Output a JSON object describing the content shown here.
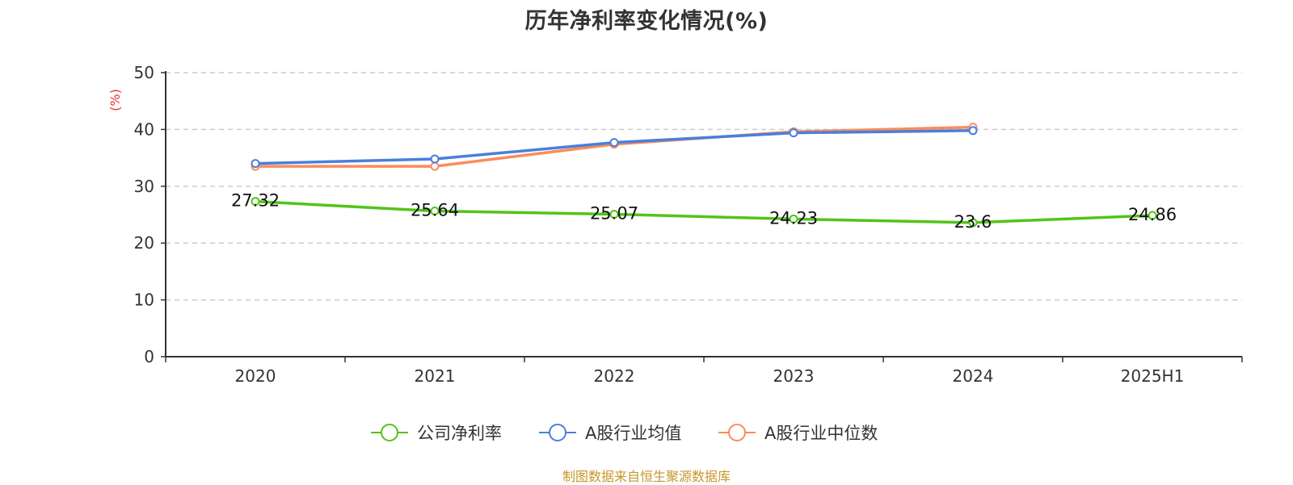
{
  "chart_data": {
    "type": "line",
    "title": "历年净利率变化情况(%)",
    "ylabel": "(%)",
    "xlabel": "",
    "categories": [
      "2020",
      "2021",
      "2022",
      "2023",
      "2024",
      "2025H1"
    ],
    "ylim": [
      0,
      50
    ],
    "yticks": [
      0,
      10,
      20,
      30,
      40,
      50
    ],
    "grid": true,
    "legend_position": "bottom",
    "series": [
      {
        "name": "公司净利率",
        "color": "#52c41a",
        "values": [
          27.32,
          25.64,
          25.07,
          24.23,
          23.6,
          24.86
        ],
        "labels": [
          "27.32",
          "25.64",
          "25.07",
          "24.23",
          "23.6",
          "24.86"
        ],
        "show_labels": true
      },
      {
        "name": "A股行业均值",
        "color": "#4a7fdc",
        "values": [
          34.0,
          34.8,
          37.7,
          39.4,
          39.8,
          null
        ],
        "show_labels": false
      },
      {
        "name": "A股行业中位数",
        "color": "#fa8c5a",
        "values": [
          33.5,
          33.5,
          37.4,
          39.6,
          40.4,
          null
        ],
        "show_labels": false
      }
    ]
  },
  "source_note": "制图数据来自恒生聚源数据库",
  "colors": {
    "axis": "#333333",
    "grid": "#cccccc",
    "ylabel": "#e8322e"
  }
}
